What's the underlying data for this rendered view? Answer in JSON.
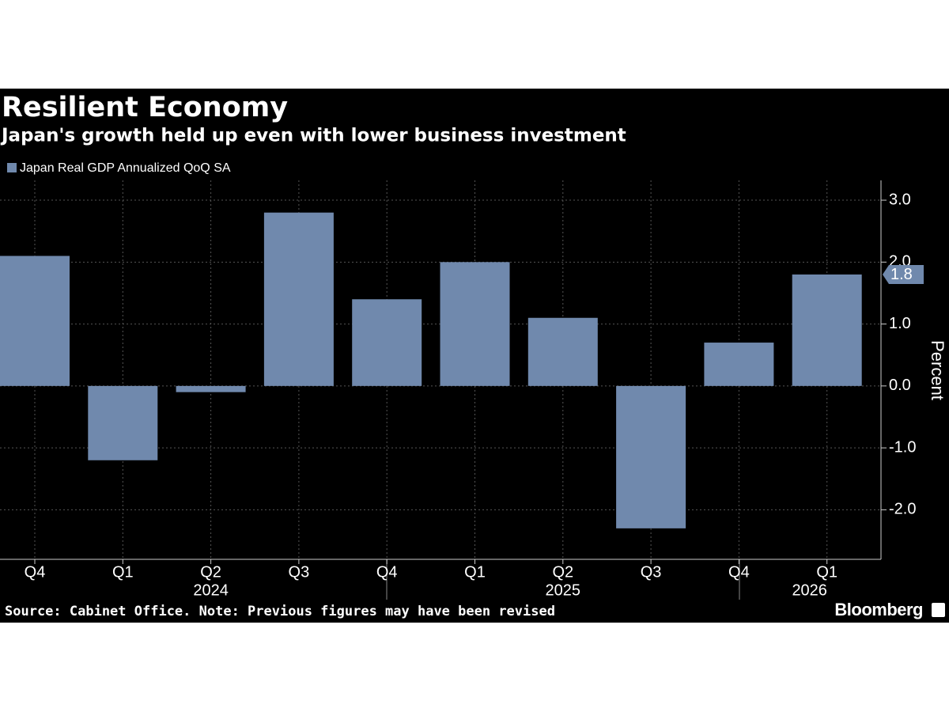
{
  "chart_data": {
    "type": "bar",
    "title": "Resilient Economy",
    "subtitle": "Japan's growth held up even with lower business investment",
    "categories": [
      "Q4",
      "Q1",
      "Q2",
      "Q3",
      "Q4",
      "Q1",
      "Q2",
      "Q3",
      "Q4",
      "Q1"
    ],
    "year_categories": [
      null,
      null,
      "2024",
      null,
      null,
      null,
      "2025",
      null,
      null,
      "2026"
    ],
    "series": [
      {
        "name": "Japan Real GDP Annualized QoQ SA",
        "color": "#7089ad",
        "values": [
          2.1,
          -1.2,
          -0.1,
          2.8,
          1.4,
          2.0,
          1.1,
          -2.3,
          0.7,
          1.8
        ]
      }
    ],
    "ylim": [
      -2.8,
      3.32
    ],
    "yticks": [
      {
        "value": 3,
        "label": "3.0"
      },
      {
        "value": 2,
        "label": "2.0"
      },
      {
        "value": 1,
        "label": "1.0"
      },
      {
        "value": 0,
        "label": "0.0"
      },
      {
        "value": -1,
        "label": "-1.0"
      },
      {
        "value": -2,
        "label": "-2.0"
      }
    ],
    "y_label": "Percent",
    "grid": true,
    "source": "Source: Cabinet Office. Note: Previous figures may have been revised",
    "brand": "Bloomberg"
  }
}
